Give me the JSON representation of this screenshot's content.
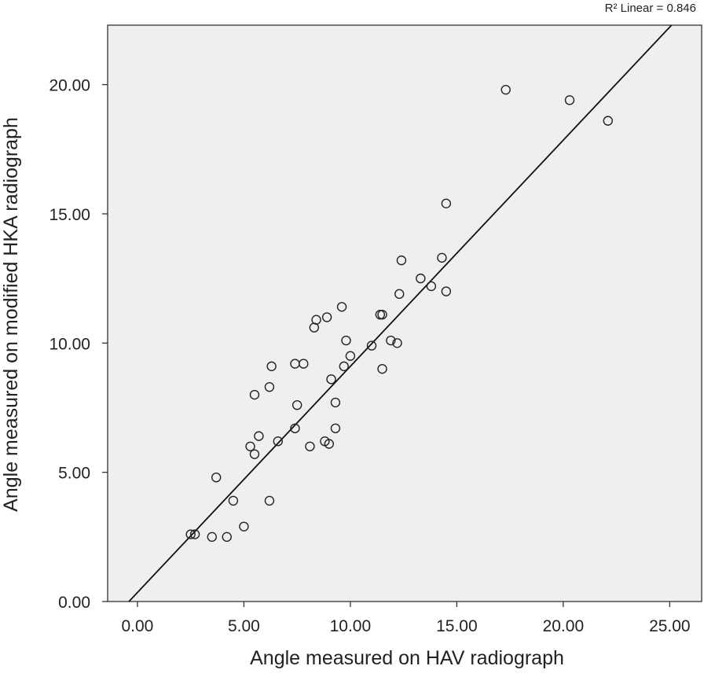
{
  "chart_data": {
    "type": "scatter",
    "title": "",
    "xlabel": "Angle measured on HAV radiograph",
    "ylabel": "Angle measured on modified HKA radiograph",
    "xlim": [
      -1.4,
      26.5
    ],
    "ylim": [
      0,
      22.3
    ],
    "x_ticks": [
      0,
      5,
      10,
      15,
      20,
      25
    ],
    "x_tick_labels": [
      "0.00",
      "5.00",
      "10.00",
      "15.00",
      "20.00",
      "25.00"
    ],
    "y_ticks": [
      0,
      5,
      10,
      15,
      20
    ],
    "y_tick_labels": [
      "0.00",
      "5.00",
      "10.00",
      "15.00",
      "20.00"
    ],
    "annotation": "R² Linear = 0.846",
    "fit_line": {
      "slope": 0.875,
      "intercept": 0.35
    },
    "grid": false,
    "colors": {
      "plot_background": "#efefef",
      "marker_stroke": "#222222",
      "line": "#111111"
    },
    "points": [
      {
        "x": 2.5,
        "y": 2.6
      },
      {
        "x": 2.7,
        "y": 2.6
      },
      {
        "x": 3.5,
        "y": 2.5
      },
      {
        "x": 3.7,
        "y": 4.8
      },
      {
        "x": 4.2,
        "y": 2.5
      },
      {
        "x": 4.5,
        "y": 3.9
      },
      {
        "x": 5.0,
        "y": 2.9
      },
      {
        "x": 5.3,
        "y": 6.0
      },
      {
        "x": 5.5,
        "y": 8.0
      },
      {
        "x": 5.5,
        "y": 5.7
      },
      {
        "x": 5.7,
        "y": 6.4
      },
      {
        "x": 6.2,
        "y": 8.3
      },
      {
        "x": 6.2,
        "y": 3.9
      },
      {
        "x": 6.3,
        "y": 9.1
      },
      {
        "x": 6.6,
        "y": 6.2
      },
      {
        "x": 7.4,
        "y": 9.2
      },
      {
        "x": 7.4,
        "y": 6.7
      },
      {
        "x": 7.5,
        "y": 7.6
      },
      {
        "x": 7.8,
        "y": 9.2
      },
      {
        "x": 8.1,
        "y": 6.0
      },
      {
        "x": 8.3,
        "y": 10.6
      },
      {
        "x": 8.4,
        "y": 10.9
      },
      {
        "x": 8.8,
        "y": 6.2
      },
      {
        "x": 8.9,
        "y": 11.0
      },
      {
        "x": 9.0,
        "y": 6.1
      },
      {
        "x": 9.1,
        "y": 8.6
      },
      {
        "x": 9.3,
        "y": 7.7
      },
      {
        "x": 9.3,
        "y": 6.7
      },
      {
        "x": 9.6,
        "y": 11.4
      },
      {
        "x": 9.7,
        "y": 9.1
      },
      {
        "x": 9.8,
        "y": 10.1
      },
      {
        "x": 10.0,
        "y": 9.5
      },
      {
        "x": 11.0,
        "y": 9.9
      },
      {
        "x": 11.4,
        "y": 11.1
      },
      {
        "x": 11.5,
        "y": 11.1
      },
      {
        "x": 11.5,
        "y": 9.0
      },
      {
        "x": 11.9,
        "y": 10.1
      },
      {
        "x": 12.2,
        "y": 10.0
      },
      {
        "x": 12.3,
        "y": 11.9
      },
      {
        "x": 12.4,
        "y": 13.2
      },
      {
        "x": 13.3,
        "y": 12.5
      },
      {
        "x": 13.8,
        "y": 12.2
      },
      {
        "x": 14.3,
        "y": 13.3
      },
      {
        "x": 14.5,
        "y": 15.4
      },
      {
        "x": 14.5,
        "y": 12.0
      },
      {
        "x": 17.3,
        "y": 19.8
      },
      {
        "x": 20.3,
        "y": 19.4
      },
      {
        "x": 22.1,
        "y": 18.6
      }
    ]
  }
}
